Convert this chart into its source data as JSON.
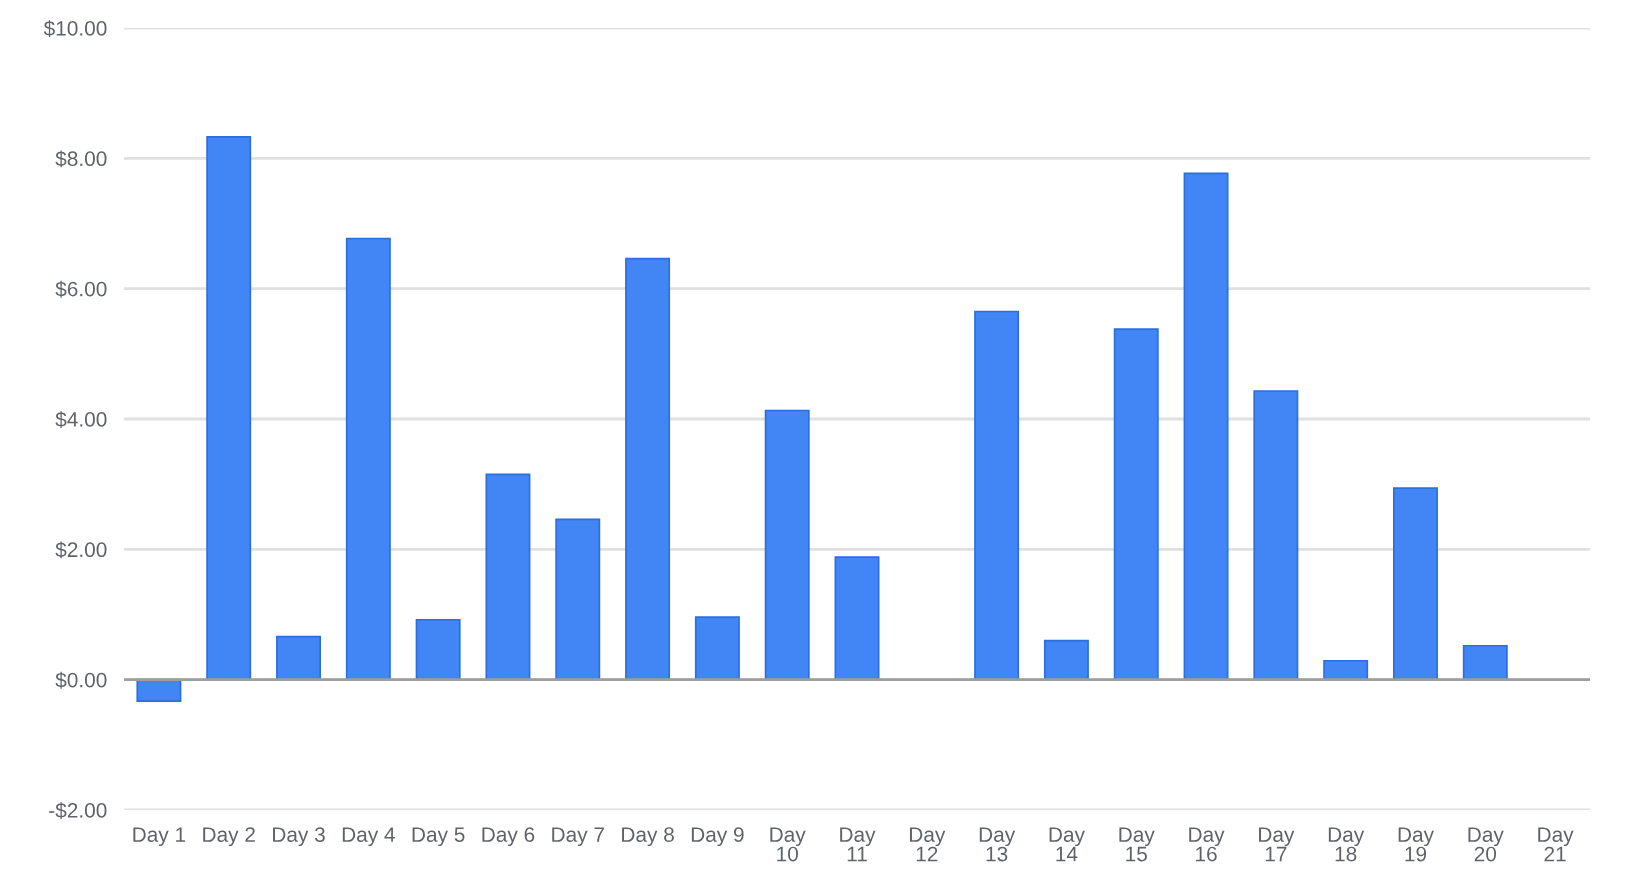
{
  "chart_data": {
    "type": "bar",
    "categories": [
      "Day 1",
      "Day 2",
      "Day 3",
      "Day 4",
      "Day 5",
      "Day 6",
      "Day 7",
      "Day 8",
      "Day 9",
      "Day 10",
      "Day 11",
      "Day 12",
      "Day 13",
      "Day 14",
      "Day 15",
      "Day 16",
      "Day 17",
      "Day 18",
      "Day 19",
      "Day 20",
      "Day 21"
    ],
    "values": [
      -0.33,
      8.33,
      0.66,
      6.77,
      0.92,
      3.15,
      2.46,
      6.46,
      0.96,
      4.13,
      1.88,
      null,
      5.65,
      0.6,
      5.38,
      7.77,
      4.43,
      0.29,
      2.94,
      0.52,
      null
    ],
    "color": "#4285f4",
    "ylim": [
      -2,
      10
    ],
    "yticks": [
      {
        "value": -2,
        "label": "-$2.00"
      },
      {
        "value": 0,
        "label": "$0.00"
      },
      {
        "value": 2,
        "label": "$2.00"
      },
      {
        "value": 4,
        "label": "$4.00"
      },
      {
        "value": 6,
        "label": "$6.00"
      },
      {
        "value": 8,
        "label": "$8.00"
      },
      {
        "value": 10,
        "label": "$10.00"
      }
    ],
    "ref_lines": [
      {
        "axis": "y",
        "value": 0,
        "color": "#9e9e9e"
      }
    ],
    "grid": "y",
    "legend": false
  }
}
